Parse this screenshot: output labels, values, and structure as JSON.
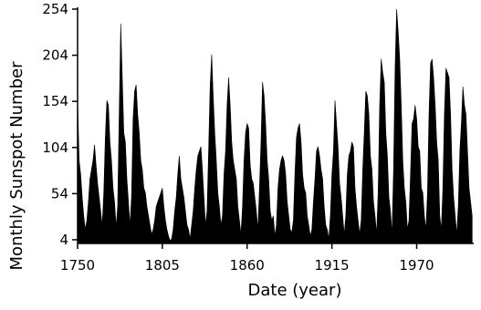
{
  "chart_data": {
    "type": "area",
    "x_label": "Date (year)",
    "y_label": "Monthly Sunspot Number",
    "x": [
      1750,
      1751,
      1752,
      1753,
      1754,
      1755,
      1756,
      1757,
      1758,
      1759,
      1760,
      1761,
      1762,
      1763,
      1764,
      1765,
      1766,
      1767,
      1768,
      1769,
      1770,
      1771,
      1772,
      1773,
      1774,
      1775,
      1776,
      1777,
      1778,
      1779,
      1780,
      1781,
      1782,
      1783,
      1784,
      1785,
      1786,
      1787,
      1788,
      1789,
      1790,
      1791,
      1792,
      1793,
      1794,
      1795,
      1796,
      1797,
      1798,
      1799,
      1800,
      1801,
      1802,
      1803,
      1804,
      1805,
      1806,
      1807,
      1808,
      1809,
      1810,
      1811,
      1812,
      1813,
      1814,
      1815,
      1816,
      1817,
      1818,
      1819,
      1820,
      1821,
      1822,
      1823,
      1824,
      1825,
      1826,
      1827,
      1828,
      1829,
      1830,
      1831,
      1832,
      1833,
      1834,
      1835,
      1836,
      1837,
      1838,
      1839,
      1840,
      1841,
      1842,
      1843,
      1844,
      1845,
      1846,
      1847,
      1848,
      1849,
      1850,
      1851,
      1852,
      1853,
      1854,
      1855,
      1856,
      1857,
      1858,
      1859,
      1860,
      1861,
      1862,
      1863,
      1864,
      1865,
      1866,
      1867,
      1868,
      1869,
      1870,
      1871,
      1872,
      1873,
      1874,
      1875,
      1876,
      1877,
      1878,
      1879,
      1880,
      1881,
      1882,
      1883,
      1884,
      1885,
      1886,
      1887,
      1888,
      1889,
      1890,
      1891,
      1892,
      1893,
      1894,
      1895,
      1896,
      1897,
      1898,
      1899,
      1900,
      1901,
      1902,
      1903,
      1904,
      1905,
      1906,
      1907,
      1908,
      1909,
      1910,
      1911,
      1912,
      1913,
      1914,
      1915,
      1916,
      1917,
      1918,
      1919,
      1920,
      1921,
      1922,
      1923,
      1924,
      1925,
      1926,
      1927,
      1928,
      1929,
      1930,
      1931,
      1932,
      1933,
      1934,
      1935,
      1936,
      1937,
      1938,
      1939,
      1940,
      1941,
      1942,
      1943,
      1944,
      1945,
      1946,
      1947,
      1948,
      1949,
      1950,
      1951,
      1952,
      1953,
      1954,
      1955,
      1956,
      1957,
      1958,
      1959,
      1960,
      1961,
      1962,
      1963,
      1964,
      1965,
      1966,
      1967,
      1968,
      1969,
      1970,
      1971,
      1972,
      1973,
      1974,
      1975,
      1976,
      1977,
      1978,
      1979,
      1980,
      1981,
      1982,
      1983,
      1984,
      1985,
      1986,
      1987,
      1988,
      1989,
      1990,
      1991,
      1992,
      1993,
      1994,
      1995,
      1996,
      1997,
      1998,
      1999,
      2000,
      2001,
      2002,
      2003,
      2004,
      2005,
      2006
    ],
    "values": [
      158,
      90,
      75,
      50,
      30,
      15,
      25,
      45,
      70,
      80,
      90,
      107,
      85,
      65,
      50,
      35,
      20,
      55,
      115,
      155,
      150,
      110,
      90,
      60,
      45,
      18,
      40,
      140,
      238,
      180,
      120,
      110,
      70,
      45,
      20,
      50,
      135,
      165,
      172,
      140,
      120,
      90,
      80,
      60,
      55,
      40,
      30,
      20,
      10,
      15,
      25,
      40,
      45,
      50,
      55,
      60,
      40,
      25,
      15,
      8,
      3,
      5,
      15,
      35,
      50,
      75,
      95,
      70,
      60,
      50,
      35,
      20,
      15,
      5,
      20,
      35,
      60,
      80,
      95,
      100,
      105,
      80,
      50,
      20,
      35,
      100,
      170,
      205,
      160,
      120,
      90,
      55,
      40,
      20,
      30,
      75,
      100,
      150,
      180,
      150,
      110,
      90,
      80,
      70,
      40,
      25,
      10,
      40,
      90,
      120,
      130,
      125,
      85,
      70,
      65,
      50,
      35,
      15,
      60,
      110,
      175,
      160,
      130,
      90,
      70,
      35,
      25,
      30,
      8,
      20,
      60,
      80,
      90,
      95,
      90,
      75,
      45,
      30,
      15,
      12,
      25,
      75,
      115,
      125,
      130,
      110,
      75,
      60,
      55,
      30,
      20,
      8,
      15,
      45,
      70,
      100,
      105,
      95,
      80,
      70,
      40,
      20,
      15,
      5,
      30,
      75,
      100,
      155,
      130,
      105,
      65,
      50,
      30,
      10,
      30,
      75,
      95,
      100,
      110,
      105,
      60,
      40,
      25,
      10,
      25,
      80,
      120,
      165,
      160,
      140,
      95,
      80,
      45,
      30,
      10,
      55,
      150,
      200,
      185,
      175,
      120,
      95,
      50,
      35,
      10,
      80,
      190,
      254,
      230,
      200,
      150,
      90,
      60,
      45,
      15,
      25,
      75,
      130,
      135,
      150,
      135,
      105,
      100,
      60,
      55,
      30,
      15,
      55,
      140,
      195,
      200,
      180,
      150,
      110,
      90,
      30,
      15,
      60,
      140,
      190,
      185,
      180,
      140,
      80,
      50,
      30,
      10,
      40,
      100,
      130,
      170,
      150,
      140,
      100,
      60,
      45,
      30
    ],
    "color": "#000000",
    "xlim": [
      1750,
      2007
    ],
    "xticks": [
      1750,
      1805,
      1860,
      1915,
      1970
    ],
    "ylim": [
      0,
      254
    ],
    "yticks": [
      4,
      54,
      104,
      154,
      204,
      254
    ]
  }
}
